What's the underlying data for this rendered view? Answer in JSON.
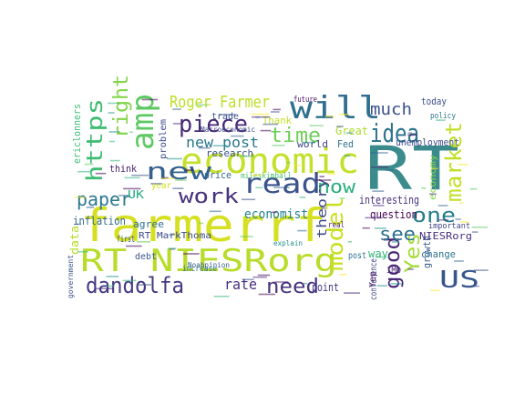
{
  "wordcloud": {
    "words": [
      {
        "text": "farmerrf",
        "color": "#d6e021"
      },
      {
        "text": "RT NIESRorg",
        "color": "#b8dc2a"
      },
      {
        "text": "RT",
        "color": "#3b8b8c"
      },
      {
        "text": "economic",
        "color": "#c4e02a"
      },
      {
        "text": "will",
        "color": "#2e6e8e"
      },
      {
        "text": "read",
        "color": "#3b528b"
      },
      {
        "text": "amp",
        "color": "#5ec962"
      },
      {
        "text": "new",
        "color": "#35608d"
      },
      {
        "text": "https",
        "color": "#3fbc73"
      },
      {
        "text": "right",
        "color": "#84d44b"
      },
      {
        "text": "piece",
        "color": "#482878"
      },
      {
        "text": "idea",
        "color": "#2c728e"
      },
      {
        "text": "market",
        "color": "#c2df23"
      },
      {
        "text": "model",
        "color": "#c8e020"
      },
      {
        "text": "dandolfa",
        "color": "#443983"
      },
      {
        "text": "time",
        "color": "#6ece58"
      },
      {
        "text": "work",
        "color": "#46337e"
      },
      {
        "text": "paper",
        "color": "#2a788e"
      },
      {
        "text": "need",
        "color": "#46327e"
      },
      {
        "text": "one",
        "color": "#287d8e"
      },
      {
        "text": "US",
        "color": "#39568c"
      },
      {
        "text": "Yes",
        "color": "#a5db36"
      },
      {
        "text": "now",
        "color": "#2ab07f"
      },
      {
        "text": "good",
        "color": "#482475"
      },
      {
        "text": "see",
        "color": "#2d708e"
      },
      {
        "text": "much",
        "color": "#3b528b"
      },
      {
        "text": "Roger Farmer",
        "color": "#bddf26"
      },
      {
        "text": "new post",
        "color": "#2a788e"
      },
      {
        "text": "rate",
        "color": "#472d7b"
      },
      {
        "text": "theory",
        "color": "#3e4989"
      },
      {
        "text": "economist",
        "color": "#25848e"
      },
      {
        "text": "UK",
        "color": "#22a884"
      },
      {
        "text": "inflation",
        "color": "#31688e"
      },
      {
        "text": "agree",
        "color": "#2e6e8e"
      },
      {
        "text": "interesting",
        "color": "#46327e"
      },
      {
        "text": "RT MarkThoma",
        "color": "#3e4a89"
      },
      {
        "text": "research",
        "color": "#3b528b"
      },
      {
        "text": "unemployment",
        "color": "#3e4c8a"
      },
      {
        "text": "way",
        "color": "#35b779"
      },
      {
        "text": "think",
        "color": "#482173"
      },
      {
        "text": "price",
        "color": "#31688e"
      },
      {
        "text": "question",
        "color": "#440154"
      },
      {
        "text": "growth",
        "color": "#38598c"
      },
      {
        "text": "NIESRorg",
        "color": "#46307e"
      },
      {
        "text": "change",
        "color": "#2c728e"
      },
      {
        "text": "point",
        "color": "#453781"
      },
      {
        "text": "conference",
        "color": "#3f4788"
      },
      {
        "text": "economy",
        "color": "#86d549"
      },
      {
        "text": "today",
        "color": "#3d4e8a"
      },
      {
        "text": "world",
        "color": "#414487"
      },
      {
        "text": "Fed",
        "color": "#2d718e"
      },
      {
        "text": "Great",
        "color": "#addc30"
      },
      {
        "text": "Thank",
        "color": "#c0df25"
      },
      {
        "text": "trade",
        "color": "#3b528b"
      },
      {
        "text": "future",
        "color": "#471063"
      },
      {
        "text": "Macroeconomic",
        "color": "#3e4989"
      },
      {
        "text": "ericlonners",
        "color": "#3fbc73"
      },
      {
        "text": "post",
        "color": "#2d708e"
      },
      {
        "text": "debt",
        "color": "#3a548c"
      },
      {
        "text": "first",
        "color": "#39558c"
      },
      {
        "text": "year",
        "color": "#d8e219"
      },
      {
        "text": "IMO",
        "color": "#482677"
      },
      {
        "text": "increase",
        "color": "#2c728e"
      },
      {
        "text": "important",
        "color": "#404588"
      },
      {
        "text": "policy",
        "color": "#2a788e"
      },
      {
        "text": "problem",
        "color": "#3e4989"
      },
      {
        "text": "mileskimball",
        "color": "#4ac16d"
      },
      {
        "text": "data",
        "color": "#b5de2b"
      },
      {
        "text": "government",
        "color": "#3b528b"
      },
      {
        "text": "Noahpinion",
        "color": "#35608d"
      },
      {
        "text": "Yep",
        "color": "#48186a"
      },
      {
        "text": "real",
        "color": "#481d6f"
      },
      {
        "text": "explain",
        "color": "#21918c"
      }
    ]
  }
}
